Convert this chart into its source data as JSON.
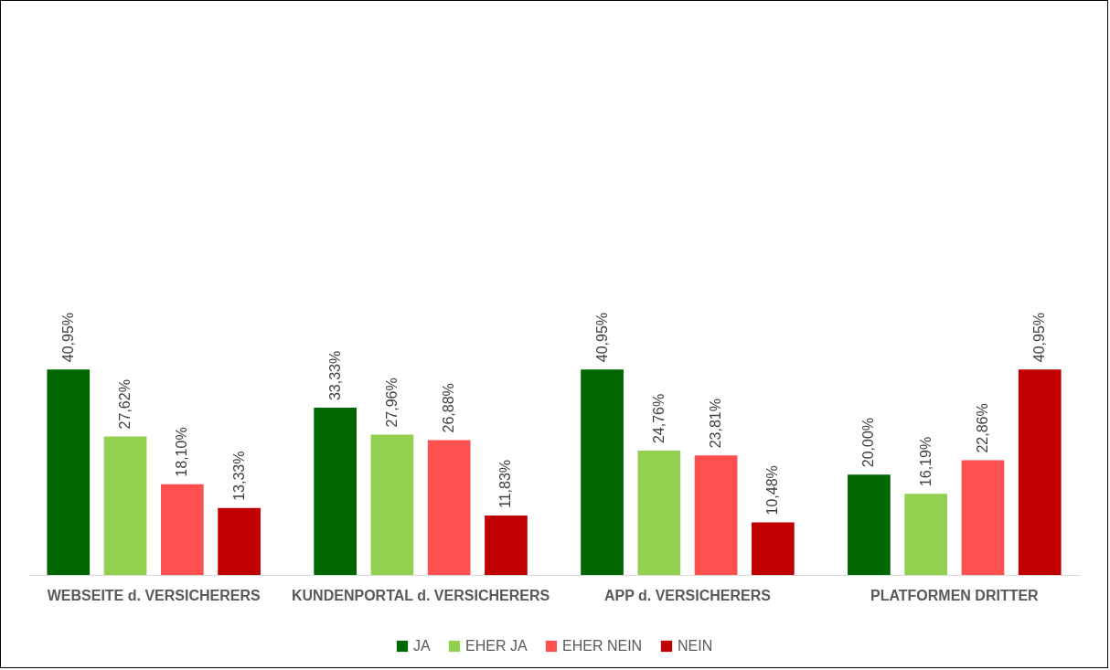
{
  "chart_data": {
    "type": "bar",
    "categories": [
      "WEBSEITE d. VERSICHERERS",
      "KUNDENPORTAL d. VERSICHERERS",
      "APP d. VERSICHERERS",
      "PLATFORMEN DRITTER"
    ],
    "series": [
      {
        "name": "JA",
        "color": "#006600",
        "values": [
          40.95,
          33.33,
          40.95,
          20.0
        ],
        "value_labels": [
          "40,95%",
          "33,33%",
          "40,95%",
          "20,00%"
        ]
      },
      {
        "name": "EHER JA",
        "color": "#92d050",
        "values": [
          27.62,
          27.96,
          24.76,
          16.19
        ],
        "value_labels": [
          "27,62%",
          "27,96%",
          "24,76%",
          "16,19%"
        ]
      },
      {
        "name": "EHER NEIN",
        "color": "#ff5050",
        "values": [
          18.1,
          26.88,
          23.81,
          22.86
        ],
        "value_labels": [
          "18,10%",
          "26,88%",
          "23,81%",
          "22,86%"
        ]
      },
      {
        "name": "NEIN",
        "color": "#c00000",
        "values": [
          13.33,
          11.83,
          10.48,
          40.95
        ],
        "value_labels": [
          "13,33%",
          "11,83%",
          "10,48%",
          "40,95%"
        ]
      }
    ],
    "legend": "bottom",
    "grid": false,
    "tick_labels": "x"
  }
}
